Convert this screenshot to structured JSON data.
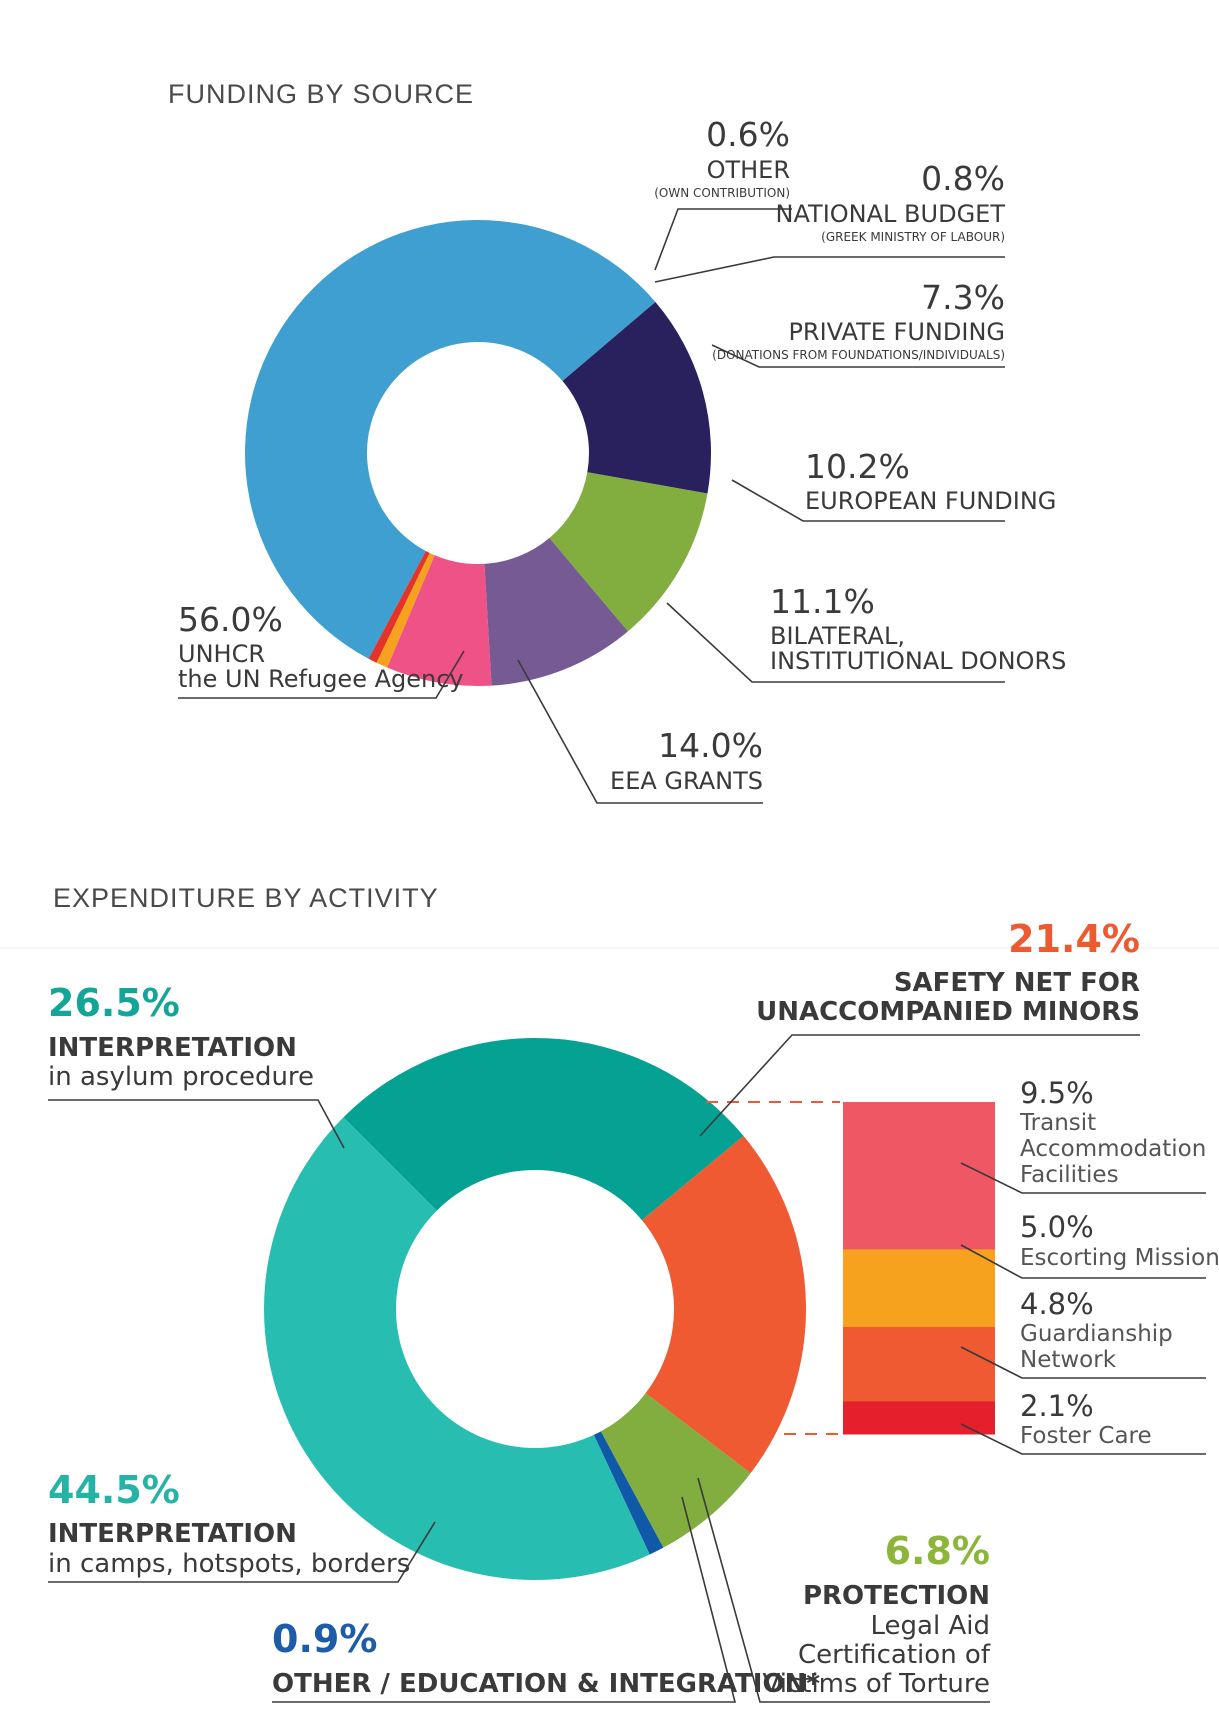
{
  "chart_data": [
    {
      "type": "donut",
      "title": "FUNDING BY SOURCE",
      "slices": [
        {
          "label": "UNHCR the UN Refugee Agency",
          "value": 56.0,
          "display": "56.0%",
          "lines": [
            "UNHCR",
            "the UN Refugee Agency"
          ],
          "note": "",
          "color": "#3f9fd1"
        },
        {
          "label": "EEA GRANTS",
          "value": 14.0,
          "display": "14.0%",
          "lines": [
            "EEA GRANTS"
          ],
          "note": "",
          "color": "#29215e"
        },
        {
          "label": "BILATERAL, INSTITUTIONAL DONORS",
          "value": 11.1,
          "display": "11.1%",
          "lines": [
            "BILATERAL,",
            "INSTITUTIONAL DONORS"
          ],
          "note": "",
          "color": "#82ad3f"
        },
        {
          "label": "EUROPEAN FUNDING",
          "value": 10.2,
          "display": "10.2%",
          "lines": [
            "EUROPEAN FUNDING"
          ],
          "note": "",
          "color": "#755a93"
        },
        {
          "label": "PRIVATE FUNDING",
          "value": 7.3,
          "display": "7.3%",
          "lines": [
            "PRIVATE FUNDING"
          ],
          "note": "(DONATIONS FROM FOUNDATIONS/INDIVIDUALS)",
          "color": "#ee5286"
        },
        {
          "label": "NATIONAL BUDGET",
          "value": 0.8,
          "display": "0.8%",
          "lines": [
            "NATIONAL BUDGET"
          ],
          "note": "(GREEK MINISTRY OF LABOUR)",
          "color": "#f7a21e"
        },
        {
          "label": "OTHER",
          "value": 0.6,
          "display": "0.6%",
          "lines": [
            "OTHER"
          ],
          "note": "(OWN CONTRIBUTION)",
          "color": "#e4332b"
        }
      ]
    },
    {
      "type": "donut",
      "title": "EXPENDITURE BY ACTIVITY",
      "slices": [
        {
          "label": "INTERPRETATION in asylum procedure",
          "value": 26.5,
          "display": "26.5%",
          "lines": [
            "INTERPRETATION",
            "in asylum procedure"
          ],
          "color": "#05a294",
          "label_color": "#13a596"
        },
        {
          "label": "SAFETY NET FOR UNACCOMPANIED MINORS",
          "value": 21.4,
          "display": "21.4%",
          "lines": [
            "SAFETY NET FOR",
            "UNACCOMPANIED MINORS"
          ],
          "color": "#ef5a32",
          "label_color": "#ee5a2f"
        },
        {
          "label": "PROTECTION Legal Aid Certification of Victims of Torture",
          "value": 6.8,
          "display": "6.8%",
          "lines": [
            "PROTECTION",
            "Legal Aid",
            "Certification of",
            "Victims of Torture"
          ],
          "color": "#82ad3f",
          "label_color": "#8bb63a"
        },
        {
          "label": "OTHER / EDUCATION & INTEGRATION*",
          "value": 0.9,
          "display": "0.9%",
          "lines": [
            "OTHER / EDUCATION & INTEGRATION*"
          ],
          "color": "#1059a8",
          "label_color": "#1c5ca8"
        },
        {
          "label": "INTERPRETATION in camps, hotspots, borders",
          "value": 44.5,
          "display": "44.5%",
          "lines": [
            "INTERPRETATION",
            "in camps, hotspots, borders"
          ],
          "color": "#27bdb1",
          "label_color": "#25b3a6"
        }
      ],
      "breakdown": {
        "of": "SAFETY NET FOR UNACCOMPANIED MINORS",
        "items": [
          {
            "label": "Transit Accommodation Facilities",
            "value": 9.5,
            "display": "9.5%",
            "lines": [
              "Transit",
              "Accommodation",
              "Facilities"
            ],
            "color": "#ef5764"
          },
          {
            "label": "Escorting Missions",
            "value": 5.0,
            "display": "5.0%",
            "lines": [
              "Escorting Missions"
            ],
            "color": "#f6a21e"
          },
          {
            "label": "Guardianship Network",
            "value": 4.8,
            "display": "4.8%",
            "lines": [
              "Guardianship",
              "Network"
            ],
            "color": "#ef5a32"
          },
          {
            "label": "Foster Care",
            "value": 2.1,
            "display": "2.1%",
            "lines": [
              "Foster Care"
            ],
            "color": "#e51f2b"
          }
        ]
      }
    }
  ]
}
